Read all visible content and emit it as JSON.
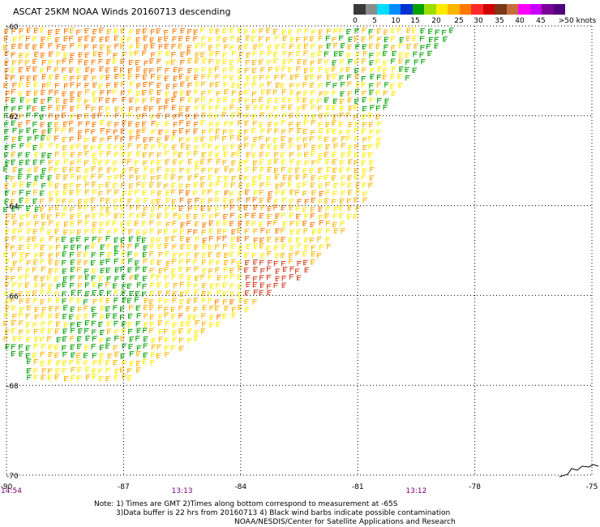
{
  "title": "ASCAT 25KM NOAA Winds 20160713 descending",
  "colorbar": {
    "colors": [
      "#3a3a3a",
      "#8c8c8c",
      "#00dcff",
      "#008cff",
      "#0032d2",
      "#00a000",
      "#9ade00",
      "#ffeb00",
      "#ffb400",
      "#ff7800",
      "#ff2828",
      "#d20000",
      "#7a3a1a",
      "#c86e3c",
      "#ff00ff",
      "#c800ff",
      "#780096",
      "#50007a"
    ],
    "labels": [
      "0",
      "5",
      "10",
      "15",
      "20",
      "25",
      "30",
      "35",
      "40",
      "45",
      ">50 knots"
    ]
  },
  "map": {
    "lat_labels": [
      "-60",
      "-62",
      "-64",
      "-66",
      "-68",
      "-70"
    ],
    "lon_labels": [
      "-90",
      "-87",
      "-84",
      "-81",
      "-78",
      "-75"
    ],
    "times": [
      {
        "label": "14:54",
        "lon": -90
      },
      {
        "label": "13:13",
        "lon": -85.5
      },
      {
        "label": "13:12",
        "lon": -79.5
      }
    ],
    "lon_range": [
      -90,
      -75
    ],
    "lat_range": [
      -70,
      -60
    ],
    "barb_colors": {
      "low": "#00a000",
      "mid": "#ffeb00",
      "high": "#ffb400",
      "strong": "#ff7800",
      "storm": "#d23c1e"
    }
  },
  "notes": {
    "line1": "Note: 1) Times are GMT 2)Times along bottom correspond to measurement at -65S",
    "line2": "3)Data buffer is 22 hrs from 20160713 4) Black wind barbs indicate possible contamination",
    "line3": "NOAA/NESDIS/Center for Satellite Applications and Research"
  }
}
